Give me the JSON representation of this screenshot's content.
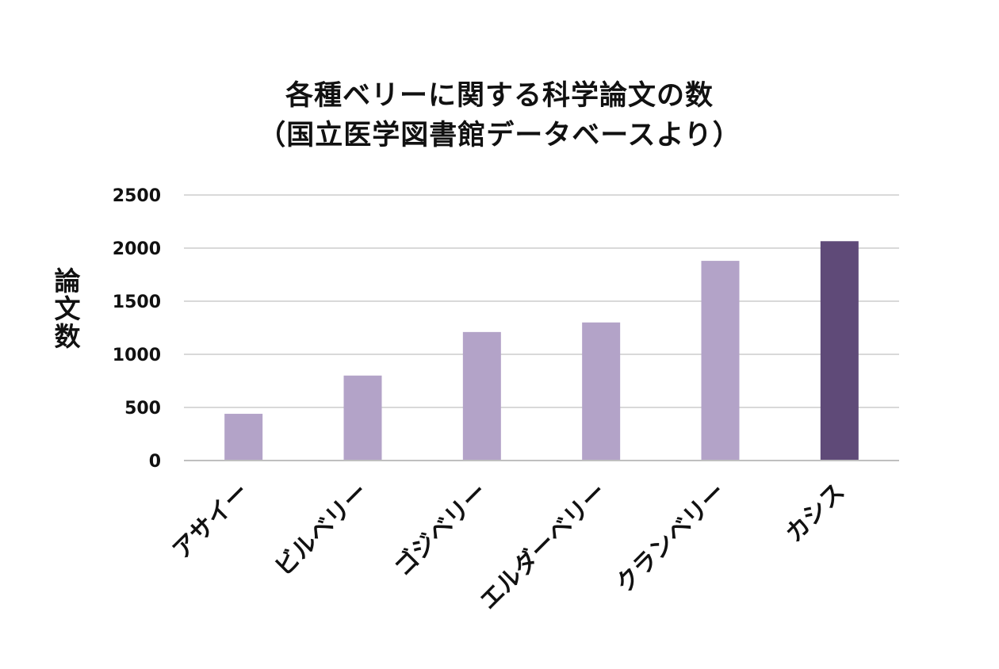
{
  "chart_data": {
    "type": "bar",
    "title_line1": "各種ベリーに関する科学論文の数",
    "title_line2": "（国立医学図書館データベースより）",
    "ylabel": "論文数",
    "xlabel": "",
    "categories": [
      "アサイー",
      "ビルベリー",
      "ゴジベリー",
      "エルダーベリー",
      "クランベリー",
      "カシス"
    ],
    "values": [
      440,
      800,
      1210,
      1300,
      1880,
      2065
    ],
    "ylim": [
      0,
      2500
    ],
    "yticks": [
      0,
      500,
      1000,
      1500,
      2000,
      2500
    ],
    "grid": true,
    "colors": {
      "bar": "#b3a3c8",
      "highlight": "#5f4a78",
      "grid": "#d9d9d9"
    },
    "highlight_index": 5
  }
}
